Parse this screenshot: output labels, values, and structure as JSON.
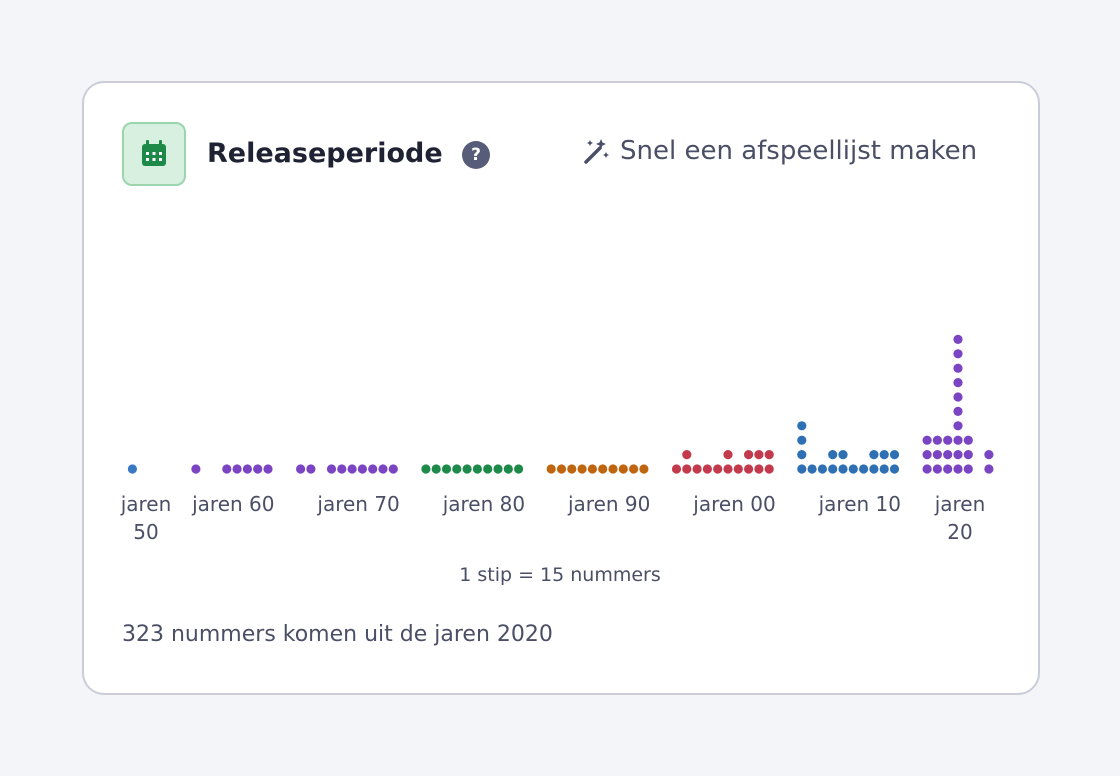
{
  "header": {
    "title": "Releaseperiode",
    "help": "?",
    "action": "Snel een afspeellijst maken"
  },
  "chart_data": {
    "type": "dot",
    "categories": [
      "jaren 50",
      "jaren 60",
      "jaren 70",
      "jaren 80",
      "jaren 90",
      "jaren 00",
      "jaren 10",
      "jaren 20"
    ],
    "colors": [
      "#3b78c4",
      "#7a44c2",
      "#7a44c2",
      "#1e8a4a",
      "#c0650f",
      "#c23a4b",
      "#2f6fb3",
      "#7a44c2"
    ],
    "values": [
      [
        0,
        0,
        0,
        0,
        0,
        0,
        0,
        0,
        1,
        0
      ],
      [
        0,
        0,
        1,
        0,
        0,
        1,
        1,
        1,
        1,
        1
      ],
      [
        1,
        1,
        0,
        1,
        1,
        1,
        1,
        1,
        1,
        1
      ],
      [
        1,
        1,
        1,
        1,
        1,
        1,
        1,
        1,
        1,
        1
      ],
      [
        1,
        1,
        1,
        1,
        1,
        1,
        1,
        1,
        1,
        1
      ],
      [
        1,
        2,
        1,
        1,
        1,
        2,
        1,
        2,
        2,
        2
      ],
      [
        4,
        1,
        1,
        2,
        2,
        1,
        1,
        2,
        2,
        2
      ],
      [
        3,
        3,
        3,
        10,
        3,
        0,
        2
      ]
    ],
    "note": "1 stip = 15 nummers"
  },
  "summary": "323 nummers komen uit de jaren 2020"
}
